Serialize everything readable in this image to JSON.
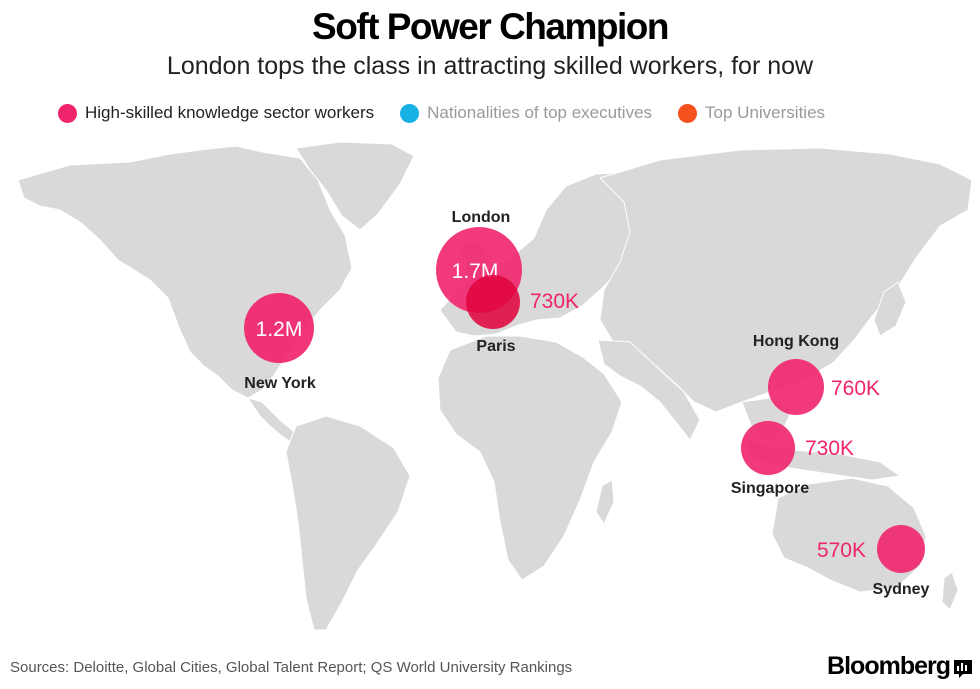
{
  "title": "Soft Power Champion",
  "subtitle": "London tops the class in attracting skilled workers, for now",
  "legend": [
    {
      "label": "High-skilled knowledge sector workers",
      "color": "#f0246d",
      "active": true
    },
    {
      "label": "Nationalities of top executives",
      "color": "#17b1e6",
      "active": false
    },
    {
      "label": "Top Universities",
      "color": "#f4511e",
      "active": false
    }
  ],
  "colors": {
    "bubble": "#f0246d",
    "land": "#d9d9d9"
  },
  "cities": [
    {
      "id": "new-york",
      "name": "New York",
      "value": 1200000,
      "value_label": "1.2M",
      "label_inside": true
    },
    {
      "id": "london",
      "name": "London",
      "value": 1700000,
      "value_label": "1.7M",
      "label_inside": true
    },
    {
      "id": "paris",
      "name": "Paris",
      "value": 730000,
      "value_label": "730K",
      "label_inside": false
    },
    {
      "id": "hong-kong",
      "name": "Hong Kong",
      "value": 760000,
      "value_label": "760K",
      "label_inside": false
    },
    {
      "id": "singapore",
      "name": "Singapore",
      "value": 730000,
      "value_label": "730K",
      "label_inside": false
    },
    {
      "id": "sydney",
      "name": "Sydney",
      "value": 570000,
      "value_label": "570K",
      "label_inside": false
    }
  ],
  "footer": {
    "sources": "Sources: Deloitte, Global Cities, Global Talent Report; QS World University Rankings",
    "brand": "Bloomberg"
  }
}
